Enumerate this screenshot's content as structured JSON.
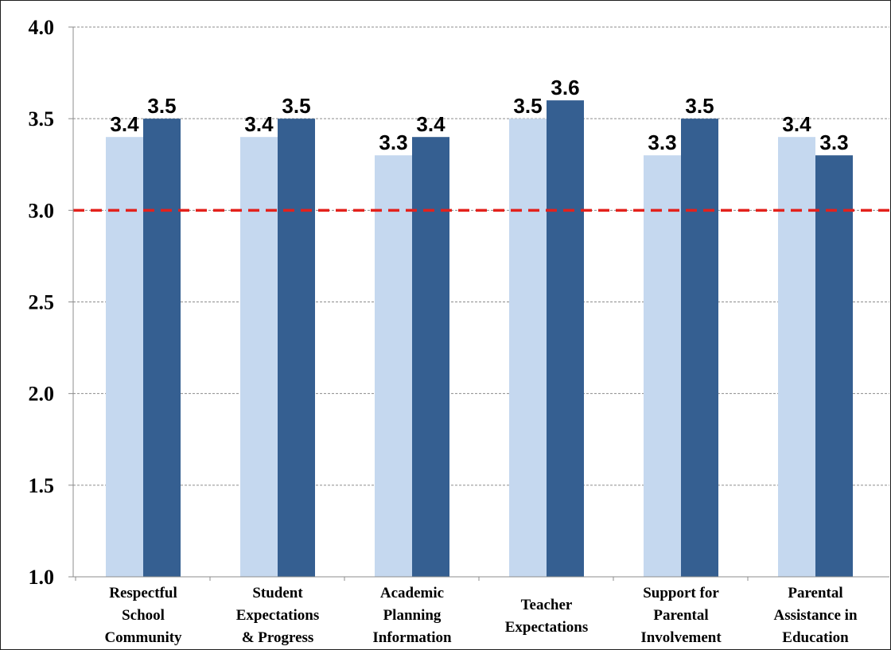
{
  "chart_data": {
    "type": "bar",
    "title": "",
    "xlabel": "",
    "ylabel": "",
    "ylim": [
      1.0,
      4.0
    ],
    "yticks": [
      "1.0",
      "1.5",
      "2.0",
      "2.5",
      "3.0",
      "3.5",
      "4.0"
    ],
    "grid": true,
    "legend": "none",
    "categories": [
      [
        "Respectful",
        "School",
        "Community"
      ],
      [
        "Student",
        "Expectations",
        "& Progress"
      ],
      [
        "Academic",
        "Planning",
        "Information"
      ],
      [
        "Teacher",
        "Expectations"
      ],
      [
        "Support for",
        "Parental",
        "Involvement"
      ],
      [
        "Parental",
        "Assistance in",
        "Education"
      ]
    ],
    "series": [
      {
        "values": [
          3.4,
          3.4,
          3.3,
          3.5,
          3.3,
          3.4
        ],
        "labels": [
          "3.4",
          "3.4",
          "3.3",
          "3.5",
          "3.3",
          "3.4"
        ],
        "color": "#c5d8ef"
      },
      {
        "values": [
          3.5,
          3.5,
          3.4,
          3.6,
          3.5,
          3.3
        ],
        "labels": [
          "3.5",
          "3.5",
          "3.4",
          "3.6",
          "3.5",
          "3.3"
        ],
        "color": "#355f91"
      }
    ],
    "reference_line": {
      "value": 3.0,
      "color": "#e3211c",
      "style": "dashed"
    }
  }
}
